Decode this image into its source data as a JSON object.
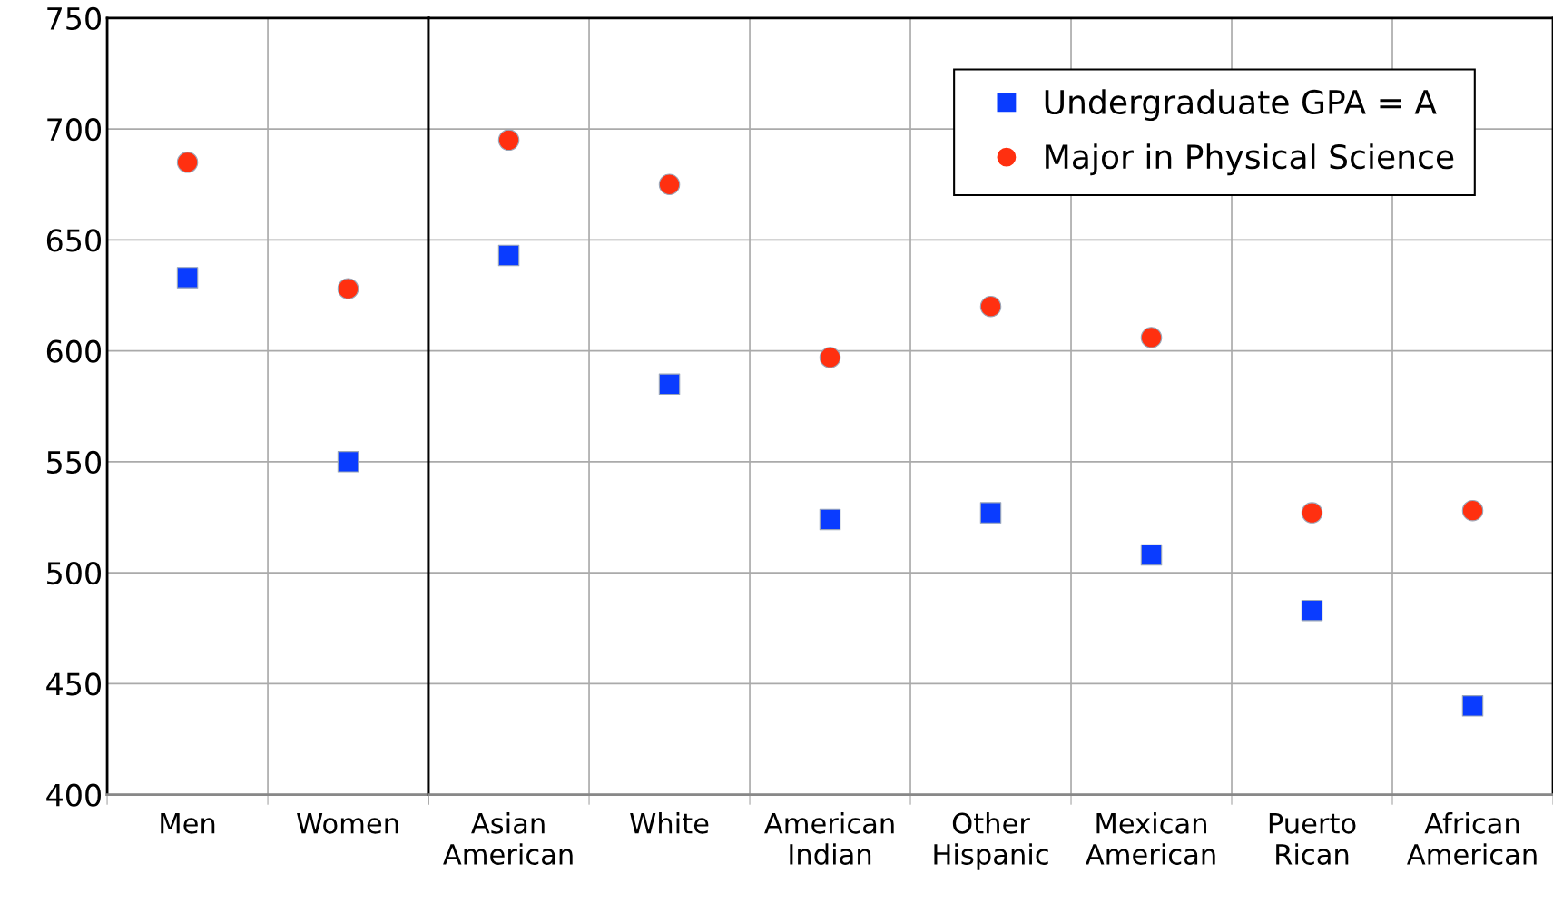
{
  "chart_data": [
    {
      "type": "scatter",
      "categories": [
        "Men",
        "Women"
      ],
      "series": [
        {
          "color": "#0a3cff",
          "marker": "square",
          "values": [
            633,
            550
          ]
        },
        {
          "color": "#ff3010",
          "marker": "circle",
          "values": [
            685,
            628
          ]
        }
      ],
      "ylim": [
        400,
        750
      ],
      "yticks": [
        400,
        450,
        500,
        550,
        600,
        650,
        700,
        750
      ],
      "grid": true
    },
    {
      "type": "scatter",
      "categories": [
        "Asian\nAmerican",
        "White",
        "American\nIndian",
        "Other\nHispanic",
        "Mexican\nAmerican",
        "Puerto\nRican",
        "African\nAmerican"
      ],
      "series": [
        {
          "name": "Undergraduate GPA = A",
          "color": "#0a3cff",
          "marker": "square",
          "values": [
            643,
            585,
            524,
            527,
            508,
            483,
            440
          ]
        },
        {
          "name": "Major in Physical Science",
          "color": "#ff3010",
          "marker": "circle",
          "values": [
            695,
            675,
            597,
            620,
            606,
            527,
            528
          ]
        }
      ],
      "ylim": [
        400,
        750
      ],
      "yticks": [
        400,
        450,
        500,
        550,
        600,
        650,
        700,
        750
      ],
      "tick_labels": "x",
      "grid": true,
      "legend": "top right"
    }
  ]
}
